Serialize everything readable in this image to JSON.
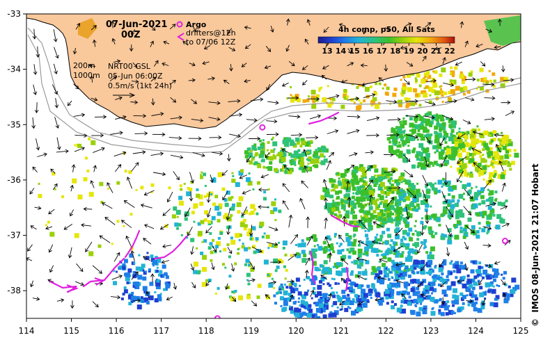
{
  "title": {
    "date": "07-Jun-2021",
    "hour": "00Z"
  },
  "legend": {
    "argo_label": "Argo",
    "drifters_line1": "drifters@12h",
    "drifters_line2": "to 07/06 12Z",
    "colorbar_title": "4h comp, p50, All Sats",
    "colorbar_ticks": [
      "13",
      "14",
      "15",
      "16",
      "17",
      "18",
      "19",
      "20",
      "21",
      "22"
    ],
    "colorbar_colors": [
      "#1b1b8c",
      "#1f3fd0",
      "#1e7fe8",
      "#22b3d6",
      "#2ec27a",
      "#3cbf2a",
      "#9ad10a",
      "#e6e60a",
      "#f2a80c",
      "#e35a10",
      "#a81010"
    ]
  },
  "annotations": {
    "isobath_200": "200m",
    "isobath_1000": "1000m",
    "source": "NRT00 GSL",
    "source_date": "05-Jun 06:00Z",
    "scale_label": "0.5m/s (1kt 24h)"
  },
  "axes": {
    "x_ticks": [
      "114",
      "115",
      "116",
      "117",
      "118",
      "119",
      "120",
      "121",
      "122",
      "123",
      "124",
      "125"
    ],
    "y_ticks": [
      "-33",
      "-34",
      "-35",
      "-36",
      "-37",
      "-38"
    ]
  },
  "map": {
    "lon_range": [
      114,
      125
    ],
    "lat_range": [
      -38.5,
      -33
    ],
    "land_color": "#f9c89b",
    "drifter_color": "#e020e0",
    "argo_floats": [
      {
        "lon": 119.25,
        "lat": -35.05
      },
      {
        "lon": 124.65,
        "lat": -37.1
      },
      {
        "lon": 118.25,
        "lat": -38.5
      }
    ]
  },
  "credit": "IMOS 08-Jun-2021 21:07 Hobart",
  "copyright_symbol": "©"
}
